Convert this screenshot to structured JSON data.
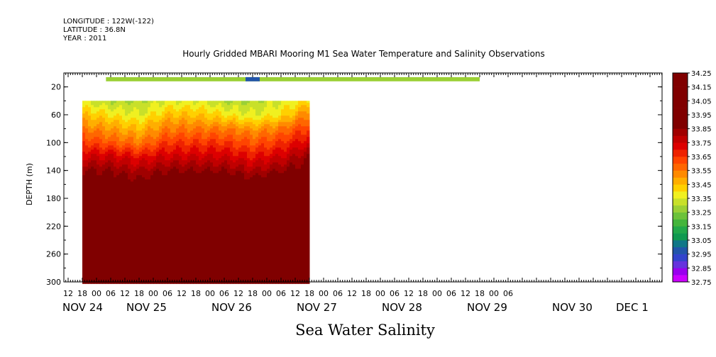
{
  "header": {
    "longitude": "LONGITUDE : 122W(-122)",
    "latitude": "LATITUDE : 36.8N",
    "year": "YEAR : 2011"
  },
  "footer": {
    "variable": "Sea Water Salinity"
  },
  "chart_data": {
    "type": "heatmap",
    "title": "Hourly Gridded MBARI Mooring M1 Sea Water Temperature and Salinity Observations",
    "ylabel": "DEPTH (m)",
    "xlabel": "",
    "y_reversed": true,
    "ylim": [
      300,
      0
    ],
    "y_ticks": [
      20,
      60,
      100,
      140,
      180,
      220,
      260,
      300
    ],
    "x_hour_labels": [
      "12",
      "18",
      "00",
      "06",
      "12",
      "18",
      "00",
      "06",
      "12",
      "18",
      "00",
      "06",
      "12",
      "18",
      "00",
      "06",
      "12",
      "18",
      "00",
      "06",
      "12",
      "18",
      "00",
      "06",
      "12",
      "18",
      "00",
      "06",
      "12",
      "18",
      "00",
      "06"
    ],
    "x_day_labels": [
      "NOV 24",
      "NOV 25",
      "NOV 26",
      "NOV 27",
      "NOV 28",
      "NOV 29",
      "NOV 30",
      "DEC  1"
    ],
    "colorbar": {
      "min": 32.75,
      "max": 34.25,
      "step": 0.05,
      "labels": [
        "34.25",
        "34.15",
        "34.05",
        "33.95",
        "33.85",
        "33.75",
        "33.65",
        "33.55",
        "33.45",
        "33.35",
        "33.25",
        "33.15",
        "33.05",
        "32.95",
        "32.85",
        "32.75"
      ],
      "colors": [
        "#cc00ff",
        "#9900ee",
        "#6633dd",
        "#3344cc",
        "#2255aa",
        "#117788",
        "#109950",
        "#22a84a",
        "#44b53c",
        "#6cc23a",
        "#9bd035",
        "#c8e02a",
        "#f0f020",
        "#ffd000",
        "#ffae00",
        "#ff8a00",
        "#ff6600",
        "#ff4400",
        "#ee2200",
        "#dd0000",
        "#c00000",
        "#a00000",
        "#800000"
      ]
    },
    "surface_layer": {
      "depth": 10,
      "value": 33.3,
      "time_range": [
        "NOV 25 04",
        "DEC 1 18"
      ],
      "min_value": 32.95,
      "min_time": "NOV 27 18"
    },
    "deep_layer": {
      "time_range": [
        "NOV 24 18",
        "NOV 28 18"
      ],
      "depths": [
        40,
        60,
        80,
        100,
        120,
        140,
        160,
        180,
        200,
        220,
        240,
        260,
        280,
        300
      ],
      "times": [
        "NOV 24 18",
        "NOV 25 06",
        "NOV 25 18",
        "NOV 26 06",
        "NOV 26 18",
        "NOV 27 06",
        "NOV 27 18",
        "NOV 28 06",
        "NOV 28 18"
      ],
      "values": [
        [
          33.35,
          33.3,
          33.3,
          33.35,
          33.35,
          33.3,
          33.3,
          33.35,
          33.4
        ],
        [
          33.45,
          33.4,
          33.35,
          33.45,
          33.45,
          33.4,
          33.35,
          33.4,
          33.55
        ],
        [
          33.55,
          33.5,
          33.45,
          33.55,
          33.55,
          33.55,
          33.5,
          33.55,
          33.65
        ],
        [
          33.65,
          33.6,
          33.55,
          33.65,
          33.65,
          33.65,
          33.6,
          33.65,
          33.75
        ],
        [
          33.75,
          33.75,
          33.7,
          33.75,
          33.75,
          33.75,
          33.7,
          33.75,
          33.85
        ],
        [
          33.85,
          33.85,
          33.8,
          33.85,
          33.85,
          33.85,
          33.8,
          33.85,
          33.9
        ],
        [
          33.9,
          33.92,
          33.88,
          33.95,
          33.95,
          33.95,
          33.9,
          33.95,
          33.95
        ],
        [
          33.95,
          34.0,
          33.95,
          34.0,
          34.0,
          34.0,
          33.95,
          34.0,
          34.0
        ],
        [
          34.0,
          34.05,
          34.0,
          34.05,
          34.05,
          34.05,
          34.0,
          34.05,
          34.05
        ],
        [
          34.05,
          34.1,
          34.05,
          34.1,
          34.1,
          34.1,
          34.05,
          34.1,
          34.1
        ],
        [
          34.1,
          34.15,
          34.1,
          34.15,
          34.15,
          34.15,
          34.1,
          34.15,
          34.15
        ],
        [
          34.12,
          34.2,
          34.15,
          34.2,
          34.2,
          34.2,
          34.18,
          34.2,
          34.2
        ],
        [
          34.1,
          34.15,
          34.12,
          34.15,
          34.15,
          34.15,
          34.12,
          34.15,
          34.15
        ],
        [
          34.1,
          34.12,
          34.1,
          34.12,
          34.12,
          34.12,
          34.1,
          34.12,
          34.12
        ]
      ]
    }
  }
}
